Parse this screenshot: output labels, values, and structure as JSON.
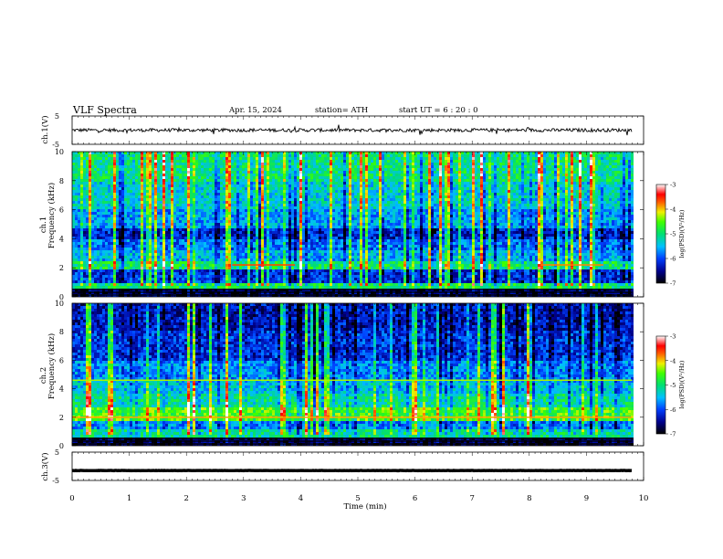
{
  "header": {
    "title": "VLF Spectra",
    "date": "Apr. 15, 2024",
    "station": "station= ATH",
    "start": "start UT =  6 : 20 : 0"
  },
  "chart_data": [
    {
      "type": "line",
      "id": "ch1",
      "ylabel": "ch.1(V)",
      "ylim": [
        -5,
        5
      ],
      "yticks": [
        {
          "v": 5,
          "label": "5"
        },
        {
          "v": -5,
          "label": "-5"
        }
      ],
      "xlim": [
        0,
        10
      ],
      "signal_end_min": 9.8,
      "trace_center": 0,
      "trace_amplitude": 0.6
    },
    {
      "type": "heatmap",
      "id": "ch1-spectrogram",
      "channel_label": "ch.1",
      "ylabel": "Frequency  (kHz)",
      "ylim": [
        0,
        10
      ],
      "yticks": [
        "0",
        "2",
        "4",
        "6",
        "8",
        "10"
      ],
      "xlim": [
        0,
        10
      ],
      "signal_end_min": 9.8,
      "colorbar": {
        "label": "log(PSD)(V²/Hz)",
        "range": [
          -7,
          -3
        ],
        "ticks": [
          "-3",
          "-4",
          "-5",
          "-6",
          "-7"
        ]
      },
      "bands_khz": [
        {
          "from": 0.0,
          "to": 0.6,
          "level": -6.8
        },
        {
          "from": 0.6,
          "to": 1.0,
          "level": -5.0
        },
        {
          "from": 1.0,
          "to": 1.9,
          "level": -6.2
        },
        {
          "from": 1.9,
          "to": 2.4,
          "level": -5.0
        },
        {
          "from": 2.4,
          "to": 3.2,
          "level": -5.6
        },
        {
          "from": 3.2,
          "to": 4.0,
          "level": -5.9
        },
        {
          "from": 4.0,
          "to": 4.8,
          "level": -6.3
        },
        {
          "from": 4.8,
          "to": 6.0,
          "level": -5.7
        },
        {
          "from": 6.0,
          "to": 8.0,
          "level": -5.4
        },
        {
          "from": 8.0,
          "to": 10.0,
          "level": -5.1
        }
      ],
      "tone_lines_khz": [
        {
          "f": 2.2,
          "t0": 2.8,
          "t1": 3.9,
          "level": -3.6
        },
        {
          "f": 2.2,
          "t0": 8.2,
          "t1": 9.3,
          "level": -3.8
        }
      ]
    },
    {
      "type": "heatmap",
      "id": "ch2-spectrogram",
      "channel_label": "ch.2",
      "ylabel": "Frequency  (kHz)",
      "ylim": [
        0,
        10
      ],
      "yticks": [
        "0",
        "2",
        "4",
        "6",
        "8",
        "10"
      ],
      "xlim": [
        0,
        10
      ],
      "signal_end_min": 9.8,
      "colorbar": {
        "label": "log(PSD)(V²/Hz)",
        "range": [
          -7,
          -3
        ],
        "ticks": [
          "-3",
          "-4",
          "-5",
          "-6",
          "-7"
        ]
      },
      "bands_khz": [
        {
          "from": 0.0,
          "to": 0.5,
          "level": -6.8
        },
        {
          "from": 0.5,
          "to": 1.2,
          "level": -5.2
        },
        {
          "from": 1.2,
          "to": 1.8,
          "level": -5.8
        },
        {
          "from": 1.8,
          "to": 2.6,
          "level": -4.6
        },
        {
          "from": 2.6,
          "to": 3.6,
          "level": -5.2
        },
        {
          "from": 3.6,
          "to": 4.6,
          "level": -5.5
        },
        {
          "from": 4.6,
          "to": 6.0,
          "level": -5.8
        },
        {
          "from": 6.0,
          "to": 8.0,
          "level": -6.2
        },
        {
          "from": 8.0,
          "to": 10.0,
          "level": -6.4
        }
      ],
      "tone_lines_khz": [
        {
          "f": 2.0,
          "t0": 0.0,
          "t1": 9.8,
          "level": -3.9
        },
        {
          "f": 4.6,
          "t0": 0.0,
          "t1": 9.8,
          "level": -4.3
        }
      ]
    },
    {
      "type": "line",
      "id": "ch3",
      "ylabel": "ch.3(V)",
      "ylim": [
        -5,
        5
      ],
      "yticks": [
        {
          "v": 5,
          "label": "5"
        },
        {
          "v": -5,
          "label": "-5"
        }
      ],
      "xlim": [
        0,
        10
      ],
      "signal_end_min": 9.8,
      "trace_center": -1.5,
      "trace_amplitude": 0.05
    }
  ],
  "xaxis": {
    "label": "Time  (min)",
    "range": [
      0,
      10
    ],
    "ticks": [
      "0",
      "1",
      "2",
      "3",
      "4",
      "5",
      "6",
      "7",
      "8",
      "9",
      "10"
    ]
  },
  "colors": {
    "trace": "#000000",
    "axis": "#000000"
  }
}
